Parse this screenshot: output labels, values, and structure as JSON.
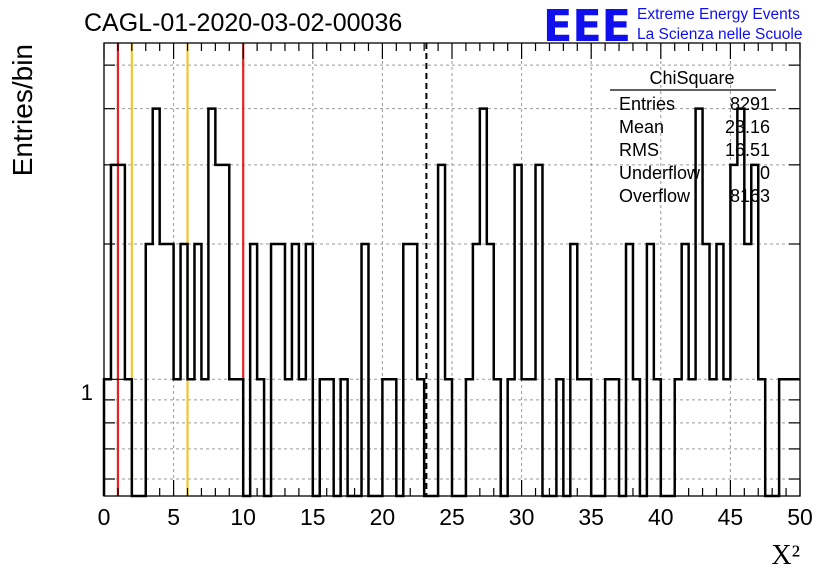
{
  "chart_data": {
    "type": "histogram",
    "title": "CAGL-01-2020-03-02-00036",
    "xlabel": "X²",
    "ylabel": "Entries/bin",
    "xlim": [
      0,
      50
    ],
    "ylim": [
      0.55,
      5.6
    ],
    "log_y": true,
    "grid": true,
    "bin_width": 0.5,
    "x_ticks": [
      "0",
      "5",
      "10",
      "15",
      "20",
      "25",
      "30",
      "35",
      "40",
      "45",
      "50"
    ],
    "y_tick_labels": [
      "1"
    ],
    "bins": [
      [
        0,
        1
      ],
      [
        0.5,
        3
      ],
      [
        1.5,
        1
      ],
      [
        2,
        0
      ],
      [
        3,
        2
      ],
      [
        3.5,
        4
      ],
      [
        4,
        2
      ],
      [
        5,
        1
      ],
      [
        5.5,
        2
      ],
      [
        6,
        1
      ],
      [
        6.5,
        2
      ],
      [
        7,
        1
      ],
      [
        7.5,
        4
      ],
      [
        8,
        3
      ],
      [
        8.5,
        3
      ],
      [
        9,
        1
      ],
      [
        10,
        0
      ],
      [
        10.5,
        2
      ],
      [
        11,
        1
      ],
      [
        11.5,
        0
      ],
      [
        12,
        2
      ],
      [
        13,
        1
      ],
      [
        13.5,
        2
      ],
      [
        14,
        1
      ],
      [
        14.5,
        2
      ],
      [
        15,
        0
      ],
      [
        15.5,
        1
      ],
      [
        16.5,
        0
      ],
      [
        17,
        1
      ],
      [
        17.5,
        0
      ],
      [
        18.5,
        2
      ],
      [
        19,
        0
      ],
      [
        20,
        1
      ],
      [
        21,
        0
      ],
      [
        21.5,
        2
      ],
      [
        22.5,
        1
      ],
      [
        23,
        0
      ],
      [
        24,
        3
      ],
      [
        24.5,
        1
      ],
      [
        25,
        0
      ],
      [
        26,
        1
      ],
      [
        26.5,
        2
      ],
      [
        27,
        4
      ],
      [
        27.5,
        2
      ],
      [
        28,
        1
      ],
      [
        28.5,
        0
      ],
      [
        29,
        1
      ],
      [
        29.5,
        3
      ],
      [
        30,
        1
      ],
      [
        31,
        3
      ],
      [
        31.5,
        0
      ],
      [
        32.5,
        1
      ],
      [
        33,
        0
      ],
      [
        33.5,
        2
      ],
      [
        34,
        1
      ],
      [
        35,
        0
      ],
      [
        36,
        1
      ],
      [
        37,
        0
      ],
      [
        37.5,
        2
      ],
      [
        38,
        1
      ],
      [
        38.5,
        0
      ],
      [
        39,
        2
      ],
      [
        39.5,
        1
      ],
      [
        40,
        0
      ],
      [
        41,
        1
      ],
      [
        41.5,
        2
      ],
      [
        42,
        1
      ],
      [
        42.5,
        4
      ],
      [
        43,
        2
      ],
      [
        43.5,
        1
      ],
      [
        44,
        2
      ],
      [
        44.5,
        1
      ],
      [
        45,
        3
      ],
      [
        45.5,
        4
      ],
      [
        46,
        2
      ],
      [
        46.5,
        3
      ],
      [
        47,
        1
      ],
      [
        47.5,
        0
      ],
      [
        48.5,
        1
      ],
      [
        50,
        1
      ]
    ],
    "vlines": [
      {
        "x": 1.0,
        "color": "#e8201e",
        "style": "solid"
      },
      {
        "x": 2.0,
        "color": "#f4c430",
        "style": "solid"
      },
      {
        "x": 6.0,
        "color": "#f4c430",
        "style": "solid"
      },
      {
        "x": 10.0,
        "color": "#e8201e",
        "style": "solid"
      },
      {
        "x": 23.16,
        "color": "#000000",
        "style": "dashed"
      }
    ],
    "stats_box": {
      "title": "ChiSquare",
      "rows": [
        {
          "label": "Entries",
          "value": "8291"
        },
        {
          "label": "Mean",
          "value": "23.16"
        },
        {
          "label": "RMS",
          "value": "16.51"
        },
        {
          "label": "Underflow",
          "value": "0"
        },
        {
          "label": "Overflow",
          "value": "8163"
        }
      ]
    }
  },
  "logo": {
    "mark": "EEE",
    "line1": "Extreme Energy Events",
    "line2": "La Scienza nelle Scuole",
    "color": "#1010ee"
  }
}
